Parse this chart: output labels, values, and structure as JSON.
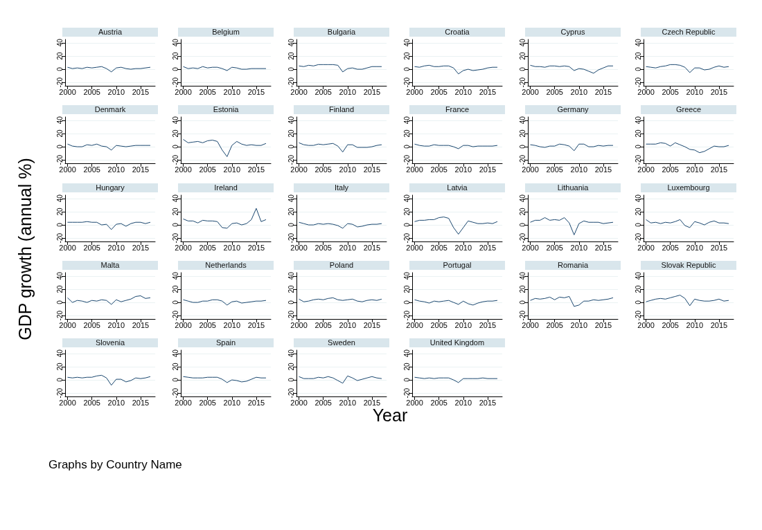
{
  "chart_data": [
    {
      "type": "line",
      "title": "Austria",
      "x": [
        2000,
        2001,
        2002,
        2003,
        2004,
        2005,
        2006,
        2007,
        2008,
        2009,
        2010,
        2011,
        2012,
        2013,
        2014,
        2015,
        2016,
        2017
      ],
      "values": [
        3,
        1,
        2,
        1,
        3,
        2,
        3,
        4,
        1,
        -4,
        2,
        3,
        1,
        0,
        1,
        1,
        2,
        3
      ],
      "color": "#1a476f",
      "xlim": [
        1999.5,
        2018
      ],
      "xticks": [
        2000,
        2005,
        2010,
        2015
      ],
      "ylim": [
        -25,
        45
      ],
      "yticks": [
        -20,
        0,
        20,
        40
      ],
      "grid": "y"
    },
    {
      "type": "line",
      "title": "Belgium",
      "x": [
        2000,
        2001,
        2002,
        2003,
        2004,
        2005,
        2006,
        2007,
        2008,
        2009,
        2010,
        2011,
        2012,
        2013,
        2014,
        2015,
        2016,
        2017
      ],
      "values": [
        4,
        1,
        2,
        1,
        4,
        2,
        3,
        3,
        1,
        -2,
        3,
        2,
        0,
        0,
        1,
        1,
        1,
        1
      ],
      "color": "#1a476f",
      "xlim": [
        1999.5,
        2018
      ],
      "xticks": [
        2000,
        2005,
        2010,
        2015
      ],
      "ylim": [
        -25,
        45
      ],
      "yticks": [
        -20,
        0,
        20,
        40
      ],
      "grid": "y"
    },
    {
      "type": "line",
      "title": "Bulgaria",
      "x": [
        2000,
        2001,
        2002,
        2003,
        2004,
        2005,
        2006,
        2007,
        2008,
        2009,
        2010,
        2011,
        2012,
        2013,
        2014,
        2015,
        2016,
        2017
      ],
      "values": [
        5,
        4,
        6,
        5,
        7,
        7,
        7,
        7,
        6,
        -4,
        1,
        2,
        0,
        0,
        2,
        4,
        4,
        4
      ],
      "color": "#1a476f",
      "xlim": [
        1999.5,
        2018
      ],
      "xticks": [
        2000,
        2005,
        2010,
        2015
      ],
      "ylim": [
        -25,
        45
      ],
      "yticks": [
        -20,
        0,
        20,
        40
      ],
      "grid": "y"
    },
    {
      "type": "line",
      "title": "Croatia",
      "x": [
        2000,
        2001,
        2002,
        2003,
        2004,
        2005,
        2006,
        2007,
        2008,
        2009,
        2010,
        2011,
        2012,
        2013,
        2014,
        2015,
        2016,
        2017
      ],
      "values": [
        4,
        3,
        5,
        6,
        4,
        4,
        5,
        5,
        2,
        -7,
        -2,
        0,
        -2,
        -1,
        0,
        2,
        3,
        3
      ],
      "color": "#1a476f",
      "xlim": [
        1999.5,
        2018
      ],
      "xticks": [
        2000,
        2005,
        2010,
        2015
      ],
      "ylim": [
        -25,
        45
      ],
      "yticks": [
        -20,
        0,
        20,
        40
      ],
      "grid": "y"
    },
    {
      "type": "line",
      "title": "Cyprus",
      "x": [
        2000,
        2001,
        2002,
        2003,
        2004,
        2005,
        2006,
        2007,
        2008,
        2009,
        2010,
        2011,
        2012,
        2013,
        2014,
        2015,
        2016,
        2017
      ],
      "values": [
        6,
        4,
        4,
        3,
        5,
        5,
        4,
        5,
        4,
        -2,
        1,
        0,
        -3,
        -6,
        -1,
        2,
        5,
        5
      ],
      "color": "#1a476f",
      "xlim": [
        1999.5,
        2018
      ],
      "xticks": [
        2000,
        2005,
        2010,
        2015
      ],
      "ylim": [
        -25,
        45
      ],
      "yticks": [
        -20,
        0,
        20,
        40
      ],
      "grid": "y"
    },
    {
      "type": "line",
      "title": "Czech Republic",
      "x": [
        2000,
        2001,
        2002,
        2003,
        2004,
        2005,
        2006,
        2007,
        2008,
        2009,
        2010,
        2011,
        2012,
        2013,
        2014,
        2015,
        2016,
        2017
      ],
      "values": [
        4,
        3,
        2,
        4,
        5,
        7,
        7,
        6,
        3,
        -5,
        2,
        2,
        -1,
        0,
        3,
        5,
        3,
        4
      ],
      "color": "#1a476f",
      "xlim": [
        1999.5,
        2018
      ],
      "xticks": [
        2000,
        2005,
        2010,
        2015
      ],
      "ylim": [
        -25,
        45
      ],
      "yticks": [
        -20,
        0,
        20,
        40
      ],
      "grid": "y"
    },
    {
      "type": "line",
      "title": "Denmark",
      "x": [
        2000,
        2001,
        2002,
        2003,
        2004,
        2005,
        2006,
        2007,
        2008,
        2009,
        2010,
        2011,
        2012,
        2013,
        2014,
        2015,
        2016,
        2017
      ],
      "values": [
        4,
        1,
        0,
        0,
        3,
        2,
        4,
        1,
        0,
        -5,
        2,
        1,
        0,
        1,
        2,
        2,
        2,
        2
      ],
      "color": "#1a476f",
      "xlim": [
        1999.5,
        2018
      ],
      "xticks": [
        2000,
        2005,
        2010,
        2015
      ],
      "ylim": [
        -25,
        45
      ],
      "yticks": [
        -20,
        0,
        20,
        40
      ],
      "grid": "y"
    },
    {
      "type": "line",
      "title": "Estonia",
      "x": [
        2000,
        2001,
        2002,
        2003,
        2004,
        2005,
        2006,
        2007,
        2008,
        2009,
        2010,
        2011,
        2012,
        2013,
        2014,
        2015,
        2016,
        2017
      ],
      "values": [
        11,
        6,
        7,
        8,
        6,
        9,
        10,
        8,
        -5,
        -15,
        2,
        8,
        4,
        2,
        3,
        2,
        2,
        5
      ],
      "color": "#1a476f",
      "xlim": [
        1999.5,
        2018
      ],
      "xticks": [
        2000,
        2005,
        2010,
        2015
      ],
      "ylim": [
        -25,
        45
      ],
      "yticks": [
        -20,
        0,
        20,
        40
      ],
      "grid": "y"
    },
    {
      "type": "line",
      "title": "Finland",
      "x": [
        2000,
        2001,
        2002,
        2003,
        2004,
        2005,
        2006,
        2007,
        2008,
        2009,
        2010,
        2011,
        2012,
        2013,
        2014,
        2015,
        2016,
        2017
      ],
      "values": [
        6,
        3,
        2,
        2,
        4,
        3,
        4,
        5,
        1,
        -8,
        3,
        3,
        -1,
        -1,
        -1,
        0,
        2,
        3
      ],
      "color": "#1a476f",
      "xlim": [
        1999.5,
        2018
      ],
      "xticks": [
        2000,
        2005,
        2010,
        2015
      ],
      "ylim": [
        -25,
        45
      ],
      "yticks": [
        -20,
        0,
        20,
        40
      ],
      "grid": "y"
    },
    {
      "type": "line",
      "title": "France",
      "x": [
        2000,
        2001,
        2002,
        2003,
        2004,
        2005,
        2006,
        2007,
        2008,
        2009,
        2010,
        2011,
        2012,
        2013,
        2014,
        2015,
        2016,
        2017
      ],
      "values": [
        4,
        2,
        1,
        1,
        3,
        2,
        2,
        2,
        0,
        -3,
        2,
        2,
        0,
        1,
        1,
        1,
        1,
        2
      ],
      "color": "#1a476f",
      "xlim": [
        1999.5,
        2018
      ],
      "xticks": [
        2000,
        2005,
        2010,
        2015
      ],
      "ylim": [
        -25,
        45
      ],
      "yticks": [
        -20,
        0,
        20,
        40
      ],
      "grid": "y"
    },
    {
      "type": "line",
      "title": "Germany",
      "x": [
        2000,
        2001,
        2002,
        2003,
        2004,
        2005,
        2006,
        2007,
        2008,
        2009,
        2010,
        2011,
        2012,
        2013,
        2014,
        2015,
        2016,
        2017
      ],
      "values": [
        3,
        2,
        0,
        -1,
        1,
        1,
        4,
        3,
        1,
        -6,
        4,
        4,
        0,
        0,
        2,
        1,
        2,
        2
      ],
      "color": "#1a476f",
      "xlim": [
        1999.5,
        2018
      ],
      "xticks": [
        2000,
        2005,
        2010,
        2015
      ],
      "ylim": [
        -25,
        45
      ],
      "yticks": [
        -20,
        0,
        20,
        40
      ],
      "grid": "y"
    },
    {
      "type": "line",
      "title": "Greece",
      "x": [
        2000,
        2001,
        2002,
        2003,
        2004,
        2005,
        2006,
        2007,
        2008,
        2009,
        2010,
        2011,
        2012,
        2013,
        2014,
        2015,
        2016,
        2017
      ],
      "values": [
        4,
        4,
        4,
        6,
        5,
        1,
        6,
        3,
        0,
        -4,
        -5,
        -9,
        -7,
        -3,
        1,
        0,
        0,
        2
      ],
      "color": "#1a476f",
      "xlim": [
        1999.5,
        2018
      ],
      "xticks": [
        2000,
        2005,
        2010,
        2015
      ],
      "ylim": [
        -25,
        45
      ],
      "yticks": [
        -20,
        0,
        20,
        40
      ],
      "grid": "y"
    },
    {
      "type": "line",
      "title": "Hungary",
      "ylabel": "GDP growth (annual %)",
      "x": [
        2000,
        2001,
        2002,
        2003,
        2004,
        2005,
        2006,
        2007,
        2008,
        2009,
        2010,
        2011,
        2012,
        2013,
        2014,
        2015,
        2016,
        2017
      ],
      "values": [
        4,
        4,
        4,
        4,
        5,
        4,
        4,
        0,
        1,
        -7,
        1,
        2,
        -2,
        2,
        4,
        4,
        2,
        4
      ],
      "color": "#1a476f",
      "xlim": [
        1999.5,
        2018
      ],
      "xticks": [
        2000,
        2005,
        2010,
        2015
      ],
      "ylim": [
        -25,
        45
      ],
      "yticks": [
        -20,
        0,
        20,
        40
      ],
      "grid": "y"
    },
    {
      "type": "line",
      "title": "Ireland",
      "x": [
        2000,
        2001,
        2002,
        2003,
        2004,
        2005,
        2006,
        2007,
        2008,
        2009,
        2010,
        2011,
        2012,
        2013,
        2014,
        2015,
        2016,
        2017
      ],
      "values": [
        9,
        6,
        6,
        3,
        7,
        6,
        6,
        5,
        -4,
        -5,
        2,
        3,
        0,
        2,
        8,
        25,
        5,
        8
      ],
      "color": "#1a476f",
      "xlim": [
        1999.5,
        2018
      ],
      "xticks": [
        2000,
        2005,
        2010,
        2015
      ],
      "ylim": [
        -25,
        45
      ],
      "yticks": [
        -20,
        0,
        20,
        40
      ],
      "grid": "y"
    },
    {
      "type": "line",
      "title": "Italy",
      "x": [
        2000,
        2001,
        2002,
        2003,
        2004,
        2005,
        2006,
        2007,
        2008,
        2009,
        2010,
        2011,
        2012,
        2013,
        2014,
        2015,
        2016,
        2017
      ],
      "values": [
        4,
        2,
        0,
        0,
        2,
        1,
        2,
        1,
        -1,
        -5,
        2,
        1,
        -3,
        -2,
        0,
        1,
        1,
        2
      ],
      "color": "#1a476f",
      "xlim": [
        1999.5,
        2018
      ],
      "xticks": [
        2000,
        2005,
        2010,
        2015
      ],
      "ylim": [
        -25,
        45
      ],
      "yticks": [
        -20,
        0,
        20,
        40
      ],
      "grid": "y"
    },
    {
      "type": "line",
      "title": "Latvia",
      "x": [
        2000,
        2001,
        2002,
        2003,
        2004,
        2005,
        2006,
        2007,
        2008,
        2009,
        2010,
        2011,
        2012,
        2013,
        2014,
        2015,
        2016,
        2017
      ],
      "values": [
        5,
        7,
        7,
        8,
        8,
        11,
        12,
        10,
        -4,
        -14,
        -4,
        6,
        4,
        2,
        2,
        3,
        2,
        5
      ],
      "color": "#1a476f",
      "xlim": [
        1999.5,
        2018
      ],
      "xticks": [
        2000,
        2005,
        2010,
        2015
      ],
      "ylim": [
        -25,
        45
      ],
      "yticks": [
        -20,
        0,
        20,
        40
      ],
      "grid": "y"
    },
    {
      "type": "line",
      "title": "Lithuania",
      "x": [
        2000,
        2001,
        2002,
        2003,
        2004,
        2005,
        2006,
        2007,
        2008,
        2009,
        2010,
        2011,
        2012,
        2013,
        2014,
        2015,
        2016,
        2017
      ],
      "values": [
        4,
        7,
        7,
        11,
        7,
        8,
        7,
        11,
        3,
        -15,
        2,
        6,
        4,
        4,
        4,
        2,
        3,
        4
      ],
      "color": "#1a476f",
      "xlim": [
        1999.5,
        2018
      ],
      "xticks": [
        2000,
        2005,
        2010,
        2015
      ],
      "ylim": [
        -25,
        45
      ],
      "yticks": [
        -20,
        0,
        20,
        40
      ],
      "grid": "y"
    },
    {
      "type": "line",
      "title": "Luxembourg",
      "x": [
        2000,
        2001,
        2002,
        2003,
        2004,
        2005,
        2006,
        2007,
        2008,
        2009,
        2010,
        2011,
        2012,
        2013,
        2014,
        2015,
        2016,
        2017
      ],
      "values": [
        8,
        3,
        4,
        2,
        4,
        3,
        5,
        8,
        -1,
        -4,
        5,
        3,
        0,
        4,
        6,
        3,
        3,
        2
      ],
      "color": "#1a476f",
      "xlim": [
        1999.5,
        2018
      ],
      "xticks": [
        2000,
        2005,
        2010,
        2015
      ],
      "ylim": [
        -25,
        45
      ],
      "yticks": [
        -20,
        0,
        20,
        40
      ],
      "grid": "y"
    },
    {
      "type": "line",
      "title": "Malta",
      "x": [
        2000,
        2001,
        2002,
        2003,
        2004,
        2005,
        2006,
        2007,
        2008,
        2009,
        2010,
        2011,
        2012,
        2013,
        2014,
        2015,
        2016,
        2017
      ],
      "values": [
        7,
        0,
        3,
        2,
        0,
        3,
        2,
        4,
        3,
        -3,
        4,
        1,
        3,
        5,
        9,
        10,
        6,
        7
      ],
      "color": "#1a476f",
      "xlim": [
        1999.5,
        2018
      ],
      "xticks": [
        2000,
        2005,
        2010,
        2015
      ],
      "ylim": [
        -25,
        45
      ],
      "yticks": [
        -20,
        0,
        20,
        40
      ],
      "grid": "y"
    },
    {
      "type": "line",
      "title": "Netherlands",
      "x": [
        2000,
        2001,
        2002,
        2003,
        2004,
        2005,
        2006,
        2007,
        2008,
        2009,
        2010,
        2011,
        2012,
        2013,
        2014,
        2015,
        2016,
        2017
      ],
      "values": [
        4,
        2,
        0,
        0,
        2,
        2,
        4,
        4,
        2,
        -4,
        1,
        2,
        -1,
        0,
        1,
        2,
        2,
        3
      ],
      "color": "#1a476f",
      "xlim": [
        1999.5,
        2018
      ],
      "xticks": [
        2000,
        2005,
        2010,
        2015
      ],
      "ylim": [
        -25,
        45
      ],
      "yticks": [
        -20,
        0,
        20,
        40
      ],
      "grid": "y"
    },
    {
      "type": "line",
      "title": "Poland",
      "x": [
        2000,
        2001,
        2002,
        2003,
        2004,
        2005,
        2006,
        2007,
        2008,
        2009,
        2010,
        2011,
        2012,
        2013,
        2014,
        2015,
        2016,
        2017
      ],
      "values": [
        5,
        1,
        2,
        4,
        5,
        4,
        6,
        7,
        4,
        3,
        4,
        5,
        2,
        1,
        3,
        4,
        3,
        5
      ],
      "color": "#1a476f",
      "xlim": [
        1999.5,
        2018
      ],
      "xticks": [
        2000,
        2005,
        2010,
        2015
      ],
      "ylim": [
        -25,
        45
      ],
      "yticks": [
        -20,
        0,
        20,
        40
      ],
      "grid": "y"
    },
    {
      "type": "line",
      "title": "Portugal",
      "x": [
        2000,
        2001,
        2002,
        2003,
        2004,
        2005,
        2006,
        2007,
        2008,
        2009,
        2010,
        2011,
        2012,
        2013,
        2014,
        2015,
        2016,
        2017
      ],
      "values": [
        4,
        2,
        1,
        -1,
        2,
        1,
        2,
        3,
        0,
        -3,
        2,
        -2,
        -4,
        -1,
        1,
        2,
        2,
        3
      ],
      "color": "#1a476f",
      "xlim": [
        1999.5,
        2018
      ],
      "xticks": [
        2000,
        2005,
        2010,
        2015
      ],
      "ylim": [
        -25,
        45
      ],
      "yticks": [
        -20,
        0,
        20,
        40
      ],
      "grid": "y"
    },
    {
      "type": "line",
      "title": "Romania",
      "x": [
        2000,
        2001,
        2002,
        2003,
        2004,
        2005,
        2006,
        2007,
        2008,
        2009,
        2010,
        2011,
        2012,
        2013,
        2014,
        2015,
        2016,
        2017
      ],
      "values": [
        3,
        6,
        5,
        6,
        8,
        4,
        8,
        7,
        9,
        -6,
        -4,
        2,
        2,
        4,
        3,
        4,
        5,
        7
      ],
      "color": "#1a476f",
      "xlim": [
        1999.5,
        2018
      ],
      "xticks": [
        2000,
        2005,
        2010,
        2015
      ],
      "ylim": [
        -25,
        45
      ],
      "yticks": [
        -20,
        0,
        20,
        40
      ],
      "grid": "y"
    },
    {
      "type": "line",
      "title": "Slovak Republic",
      "x": [
        2000,
        2001,
        2002,
        2003,
        2004,
        2005,
        2006,
        2007,
        2008,
        2009,
        2010,
        2011,
        2012,
        2013,
        2014,
        2015,
        2016,
        2017
      ],
      "values": [
        1,
        3,
        5,
        6,
        5,
        7,
        9,
        11,
        6,
        -5,
        5,
        3,
        2,
        2,
        3,
        5,
        2,
        3
      ],
      "color": "#1a476f",
      "xlim": [
        1999.5,
        2018
      ],
      "xticks": [
        2000,
        2005,
        2010,
        2015
      ],
      "ylim": [
        -25,
        45
      ],
      "yticks": [
        -20,
        0,
        20,
        40
      ],
      "grid": "y"
    },
    {
      "type": "line",
      "title": "Slovenia",
      "x": [
        2000,
        2001,
        2002,
        2003,
        2004,
        2005,
        2006,
        2007,
        2008,
        2009,
        2010,
        2011,
        2012,
        2013,
        2014,
        2015,
        2016,
        2017
      ],
      "values": [
        4,
        3,
        4,
        3,
        4,
        4,
        6,
        7,
        3,
        -8,
        1,
        1,
        -3,
        -1,
        3,
        2,
        3,
        5
      ],
      "color": "#1a476f",
      "xlim": [
        1999.5,
        2018
      ],
      "xticks": [
        2000,
        2005,
        2010,
        2015
      ],
      "ylim": [
        -25,
        45
      ],
      "yticks": [
        -20,
        0,
        20,
        40
      ],
      "grid": "y"
    },
    {
      "type": "line",
      "title": "Spain",
      "xlabel": "Year",
      "x": [
        2000,
        2001,
        2002,
        2003,
        2004,
        2005,
        2006,
        2007,
        2008,
        2009,
        2010,
        2011,
        2012,
        2013,
        2014,
        2015,
        2016,
        2017
      ],
      "values": [
        5,
        4,
        3,
        3,
        3,
        4,
        4,
        4,
        1,
        -4,
        0,
        -1,
        -3,
        -2,
        1,
        4,
        3,
        3
      ],
      "color": "#1a476f",
      "xlim": [
        1999.5,
        2018
      ],
      "xticks": [
        2000,
        2005,
        2010,
        2015
      ],
      "ylim": [
        -25,
        45
      ],
      "yticks": [
        -20,
        0,
        20,
        40
      ],
      "grid": "y"
    },
    {
      "type": "line",
      "title": "Sweden",
      "x": [
        2000,
        2001,
        2002,
        2003,
        2004,
        2005,
        2006,
        2007,
        2008,
        2009,
        2010,
        2011,
        2012,
        2013,
        2014,
        2015,
        2016,
        2017
      ],
      "values": [
        5,
        2,
        2,
        2,
        4,
        3,
        5,
        3,
        -1,
        -5,
        6,
        3,
        -1,
        1,
        3,
        5,
        3,
        2
      ],
      "color": "#1a476f",
      "xlim": [
        1999.5,
        2018
      ],
      "xticks": [
        2000,
        2005,
        2010,
        2015
      ],
      "ylim": [
        -25,
        45
      ],
      "yticks": [
        -20,
        0,
        20,
        40
      ],
      "grid": "y"
    },
    {
      "type": "line",
      "title": "United Kingdom",
      "annotations": [
        "Graphs by Country Name"
      ],
      "x": [
        2000,
        2001,
        2002,
        2003,
        2004,
        2005,
        2006,
        2007,
        2008,
        2009,
        2010,
        2011,
        2012,
        2013,
        2014,
        2015,
        2016,
        2017
      ],
      "values": [
        4,
        3,
        2,
        3,
        2,
        3,
        3,
        3,
        0,
        -4,
        2,
        2,
        2,
        2,
        3,
        2,
        2,
        2
      ],
      "color": "#1a476f",
      "xlim": [
        1999.5,
        2018
      ],
      "xticks": [
        2000,
        2005,
        2010,
        2015
      ],
      "ylim": [
        -25,
        45
      ],
      "yticks": [
        -20,
        0,
        20,
        40
      ],
      "grid": "y"
    }
  ]
}
